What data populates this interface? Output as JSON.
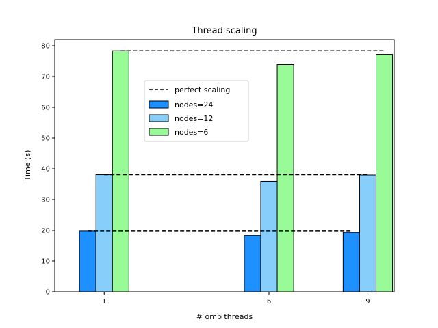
{
  "chart_data": {
    "type": "bar",
    "title": "Thread scaling",
    "xlabel": "# omp threads",
    "ylabel": "Time (s)",
    "x_ticks": [
      1,
      6,
      9
    ],
    "xlim": [
      -0.5,
      9.8
    ],
    "ylim": [
      0,
      82
    ],
    "y_ticks": [
      0,
      10,
      20,
      30,
      40,
      50,
      60,
      70,
      80
    ],
    "bar_width": 0.5,
    "series": [
      {
        "name": "nodes=24",
        "color": "#1e90ff",
        "offset": -0.5,
        "values": [
          19.8,
          18.3,
          19.3
        ]
      },
      {
        "name": "nodes=12",
        "color": "#87cefa",
        "offset": 0.0,
        "values": [
          38.1,
          35.9,
          38.0
        ]
      },
      {
        "name": "nodes=6",
        "color": "#98fb98",
        "offset": 0.5,
        "values": [
          78.4,
          73.9,
          77.2
        ]
      }
    ],
    "reference_lines": {
      "name": "perfect scaling",
      "style": "dashed",
      "color": "#000000",
      "lines": [
        {
          "y": 19.8,
          "x_start": 0.5,
          "x_end": 8.5
        },
        {
          "y": 38.1,
          "x_start": 1.0,
          "x_end": 9.0
        },
        {
          "y": 78.4,
          "x_start": 1.5,
          "x_end": 9.5
        }
      ]
    },
    "legend_placement": "upper-center"
  }
}
